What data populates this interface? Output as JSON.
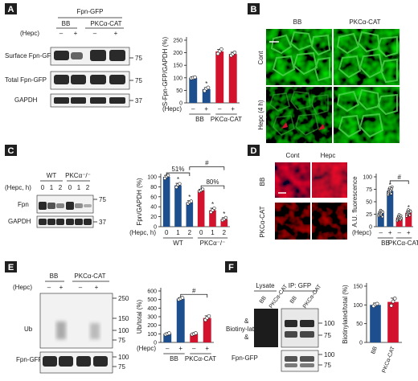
{
  "colors": {
    "bb": "#1d4f8f",
    "pkc": "#d3122e",
    "panel_label_bg": "#1f1f1f"
  },
  "panel_labels": [
    "A",
    "B",
    "C",
    "D",
    "E",
    "F"
  ],
  "panelA": {
    "header": "Fpn-GFP",
    "groups": [
      "BB",
      "PKCα-CAT"
    ],
    "hepc_row_label": "(Hepc)",
    "hepc_signs": [
      "–",
      "+",
      "–",
      "+"
    ],
    "blot_labels": [
      "Surface Fpn-GFP",
      "Total Fpn-GFP",
      "GAPDH"
    ],
    "markers": [
      "75",
      "75",
      "37"
    ]
  },
  "panelB": {
    "columns": [
      "BB",
      "PKCα-CAT"
    ],
    "rows": [
      "Cont",
      "Hepc (4 h)"
    ]
  },
  "panelC": {
    "genotypes": [
      "WT",
      "PKCα⁻/⁻"
    ],
    "row_label": "(Hepc, h)",
    "hours": [
      "0",
      "1",
      "2",
      "0",
      "1",
      "2"
    ],
    "blot_labels": [
      "Fpn",
      "GAPDH"
    ],
    "markers": [
      "75",
      "37"
    ],
    "annotations": [
      "51%",
      "80%",
      "#"
    ]
  },
  "panelD": {
    "columns": [
      "Cont",
      "Hepc"
    ],
    "rows": [
      "BB",
      "PKCα-CAT"
    ]
  },
  "panelE": {
    "groups": [
      "BB",
      "PKCα-CAT"
    ],
    "hepc_row_label": "(Hepc)",
    "hepc_signs": [
      "–",
      "+",
      "–",
      "+"
    ],
    "blot_labels": [
      "Ub",
      "Fpn-GFP"
    ],
    "markers": [
      "250",
      "150",
      "100",
      "75",
      "100",
      "75"
    ]
  },
  "panelF": {
    "lane_groups": [
      "Lysate",
      "IP: GFP"
    ],
    "lanes": [
      "BB",
      "PKCα-CAT",
      "BB",
      "PKCα-CAT"
    ],
    "blot_labels": [
      "Biotiny-lated",
      "Fpn-GFP"
    ],
    "band_marks": [
      "&",
      "&"
    ],
    "markers": [
      "100",
      "75",
      "100",
      "75"
    ]
  },
  "chart_data": [
    {
      "panel": "A",
      "type": "bar",
      "ylabel": "S-Fpn-GFP/GAPDH (%)",
      "ylim": [
        0,
        250
      ],
      "yticks": [
        0,
        50,
        100,
        150,
        200,
        250
      ],
      "row_label": "(Hepc)",
      "x_signs": [
        "–",
        "+",
        "–",
        "+"
      ],
      "groups": [
        "BB",
        "PKCα-CAT"
      ],
      "values": [
        100,
        55,
        205,
        195
      ],
      "errors": [
        4,
        6,
        8,
        7
      ],
      "points": [
        [
          98,
          100,
          102
        ],
        [
          48,
          57,
          61
        ],
        [
          196,
          206,
          214
        ],
        [
          189,
          195,
          201
        ]
      ],
      "annotations": [
        "",
        "*",
        "",
        ""
      ]
    },
    {
      "panel": "C",
      "type": "bar",
      "ylabel": "Fpn/GAPDH (%)",
      "ylim": [
        0,
        100
      ],
      "yticks": [
        0,
        20,
        40,
        60,
        80,
        100
      ],
      "row_label": "(Hepc, h)",
      "x_ticks": [
        "0",
        "1",
        "2",
        "0",
        "1",
        "2"
      ],
      "groups": [
        "WT",
        "PKCα⁻/⁻"
      ],
      "values": [
        100,
        83,
        49,
        73,
        33,
        15
      ],
      "errors": [
        3,
        4,
        3,
        2,
        4,
        3
      ],
      "points": [
        [
          97,
          101,
          103
        ],
        [
          79,
          84,
          86
        ],
        [
          46,
          49,
          51
        ],
        [
          71,
          73,
          75
        ],
        [
          29,
          33,
          37
        ],
        [
          13,
          15,
          18
        ]
      ],
      "annotations": [
        "",
        "*",
        "*",
        "",
        "*",
        "*"
      ],
      "brackets": [
        "51%",
        "80%",
        "#"
      ]
    },
    {
      "panel": "D",
      "type": "bar",
      "ylabel": "A.U. fluorescence",
      "ylim": [
        0,
        100
      ],
      "yticks": [
        0,
        25,
        50,
        75,
        100
      ],
      "row_label": "(Hepc)",
      "x_signs": [
        "–",
        "+",
        "–",
        "+"
      ],
      "groups": [
        "BB",
        "PKCα-CAT"
      ],
      "values": [
        27,
        72,
        18,
        28
      ],
      "errors": [
        3,
        4,
        3,
        3
      ],
      "points": [
        [
          22,
          25,
          28,
          30,
          33,
          24,
          27,
          31,
          20,
          29
        ],
        [
          64,
          68,
          71,
          74,
          78,
          70,
          73,
          66,
          76,
          80
        ],
        [
          12,
          15,
          18,
          21,
          24,
          16,
          19,
          14,
          22,
          17
        ],
        [
          21,
          25,
          28,
          31,
          34,
          26,
          29,
          23,
          32,
          30
        ]
      ],
      "annotations": [
        "",
        "*",
        "",
        "*"
      ],
      "brackets": [
        "#"
      ]
    },
    {
      "panel": "E",
      "type": "bar",
      "ylabel": "Ub/total (%)",
      "ylim": [
        0,
        600
      ],
      "yticks": [
        0,
        100,
        200,
        300,
        400,
        500,
        600
      ],
      "row_label": "(Hepc)",
      "x_signs": [
        "–",
        "+",
        "–",
        "+"
      ],
      "groups": [
        "BB",
        "PKCα-CAT"
      ],
      "values": [
        100,
        510,
        100,
        285
      ],
      "errors": [
        8,
        12,
        10,
        25
      ],
      "points": [
        [
          93,
          100,
          107
        ],
        [
          500,
          510,
          520
        ],
        [
          92,
          100,
          108
        ],
        [
          262,
          286,
          307
        ]
      ],
      "annotations": [
        "",
        "",
        "",
        ""
      ],
      "brackets": [
        "#"
      ]
    },
    {
      "panel": "F",
      "type": "bar",
      "ylabel": "Biotinylated/total (%)",
      "ylim": [
        0,
        150
      ],
      "yticks": [
        0,
        50,
        100,
        150
      ],
      "categories": [
        "BB",
        "PKCα-CAT"
      ],
      "values": [
        100,
        108
      ],
      "errors": [
        5,
        10
      ],
      "points": [
        [
          97,
          101,
          103
        ],
        [
          98,
          109,
          117
        ]
      ]
    }
  ]
}
